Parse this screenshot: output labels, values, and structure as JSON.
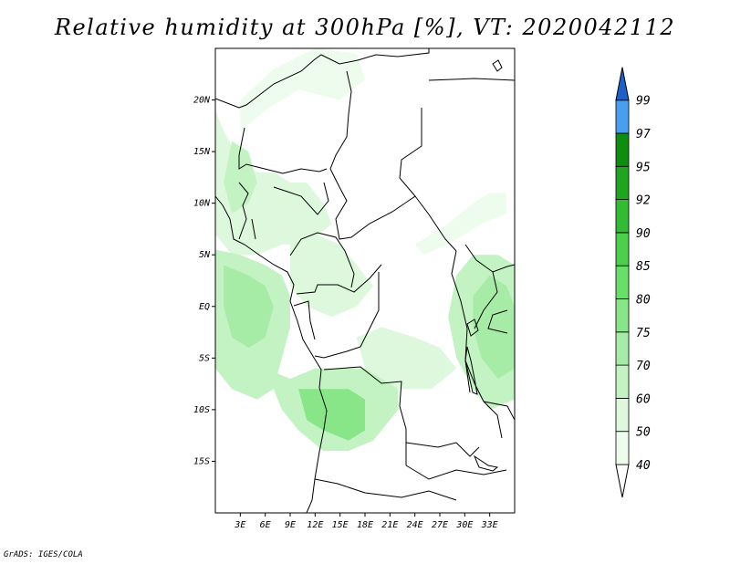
{
  "title": "Relative humidity at 300hPa [%], VT: 2020042112",
  "credit": "GrADS: IGES/COLA",
  "map": {
    "lon_range": [
      0,
      36
    ],
    "lat_range": [
      -20,
      25
    ],
    "lat_ticks": [
      {
        "value": 20,
        "label": "20N"
      },
      {
        "value": 15,
        "label": "15N"
      },
      {
        "value": 10,
        "label": "10N"
      },
      {
        "value": 5,
        "label": "5N"
      },
      {
        "value": 0,
        "label": "EQ"
      },
      {
        "value": -5,
        "label": "5S"
      },
      {
        "value": -10,
        "label": "10S"
      },
      {
        "value": -15,
        "label": "15S"
      }
    ],
    "lon_ticks": [
      {
        "value": 3,
        "label": "3E"
      },
      {
        "value": 6,
        "label": "6E"
      },
      {
        "value": 9,
        "label": "9E"
      },
      {
        "value": 12,
        "label": "12E"
      },
      {
        "value": 15,
        "label": "15E"
      },
      {
        "value": 18,
        "label": "18E"
      },
      {
        "value": 21,
        "label": "21E"
      },
      {
        "value": 24,
        "label": "24E"
      },
      {
        "value": 27,
        "label": "27E"
      },
      {
        "value": 30,
        "label": "30E"
      },
      {
        "value": 33,
        "label": "33E"
      }
    ]
  },
  "colorbar": {
    "levels": [
      {
        "value": "40",
        "color": "#eefcee"
      },
      {
        "value": "50",
        "color": "#ddf8dd"
      },
      {
        "value": "60",
        "color": "#c3f2c3"
      },
      {
        "value": "70",
        "color": "#a6eca6"
      },
      {
        "value": "75",
        "color": "#88e688"
      },
      {
        "value": "80",
        "color": "#6ade6a"
      },
      {
        "value": "85",
        "color": "#4cd04c"
      },
      {
        "value": "90",
        "color": "#33bb33"
      },
      {
        "value": "92",
        "color": "#1fa51f"
      },
      {
        "value": "95",
        "color": "#0e8e0e"
      },
      {
        "value": "97",
        "color": "#4a9ef0"
      },
      {
        "value": "99",
        "color": "#2a78dc"
      }
    ],
    "top_color": "#1e5fc8"
  },
  "humidity_regions": [
    {
      "name": "sahel-west",
      "level": "50",
      "pts": [
        [
          0,
          19
        ],
        [
          1,
          17
        ],
        [
          3,
          14
        ],
        [
          5,
          13
        ],
        [
          7,
          13
        ],
        [
          9,
          12
        ],
        [
          11,
          12
        ],
        [
          13,
          10
        ],
        [
          14,
          8
        ],
        [
          11,
          6
        ],
        [
          8,
          6
        ],
        [
          5,
          5
        ],
        [
          2,
          5
        ],
        [
          0,
          7
        ]
      ]
    },
    {
      "name": "sahel-north-arc",
      "level": "40",
      "pts": [
        [
          3,
          20
        ],
        [
          7,
          23
        ],
        [
          12,
          25
        ],
        [
          17,
          24.5
        ],
        [
          18,
          22
        ],
        [
          15,
          20
        ],
        [
          10,
          21
        ],
        [
          6,
          19
        ],
        [
          3,
          17
        ]
      ]
    },
    {
      "name": "west-highlands",
      "level": "60",
      "pts": [
        [
          2,
          16
        ],
        [
          4,
          15
        ],
        [
          5,
          12
        ],
        [
          4,
          10
        ],
        [
          2,
          9
        ],
        [
          1,
          12
        ]
      ]
    },
    {
      "name": "gulf-guinea",
      "level": "60",
      "pts": [
        [
          0,
          5.5
        ],
        [
          3,
          5
        ],
        [
          6,
          4
        ],
        [
          8,
          3
        ],
        [
          9,
          1
        ],
        [
          9,
          -2
        ],
        [
          8,
          -5
        ],
        [
          7,
          -8
        ],
        [
          5,
          -9
        ],
        [
          2,
          -8
        ],
        [
          0,
          -6
        ]
      ]
    },
    {
      "name": "gulf-guinea-core",
      "level": "70",
      "pts": [
        [
          1,
          4
        ],
        [
          4,
          3
        ],
        [
          6,
          2
        ],
        [
          7,
          0
        ],
        [
          6,
          -3
        ],
        [
          4,
          -4
        ],
        [
          2,
          -3
        ],
        [
          1,
          0
        ]
      ]
    },
    {
      "name": "angola-band",
      "level": "60",
      "pts": [
        [
          6,
          -6
        ],
        [
          9,
          -7
        ],
        [
          12,
          -6
        ],
        [
          16,
          -6
        ],
        [
          20,
          -6
        ],
        [
          22,
          -7
        ],
        [
          22,
          -10
        ],
        [
          19,
          -13
        ],
        [
          16,
          -14
        ],
        [
          13,
          -14
        ],
        [
          10,
          -12
        ],
        [
          8,
          -10
        ]
      ]
    },
    {
      "name": "angola-core",
      "level": "75",
      "pts": [
        [
          10,
          -8
        ],
        [
          13,
          -8
        ],
        [
          16,
          -8
        ],
        [
          18,
          -9
        ],
        [
          18,
          -12
        ],
        [
          16,
          -13
        ],
        [
          13,
          -12
        ],
        [
          11,
          -11
        ]
      ]
    },
    {
      "name": "cameroon-belt",
      "level": "50",
      "pts": [
        [
          9,
          6
        ],
        [
          12,
          7
        ],
        [
          15,
          6
        ],
        [
          17,
          4
        ],
        [
          19,
          2
        ],
        [
          17,
          0
        ],
        [
          14,
          -1
        ],
        [
          11,
          0
        ],
        [
          9,
          2
        ]
      ]
    },
    {
      "name": "congo-east",
      "level": "60",
      "pts": [
        [
          29,
          3
        ],
        [
          31,
          5
        ],
        [
          34,
          5
        ],
        [
          36,
          4
        ],
        [
          36,
          -9
        ],
        [
          33,
          -10
        ],
        [
          31,
          -8
        ],
        [
          29,
          -5
        ],
        [
          28,
          -1
        ]
      ]
    },
    {
      "name": "congo-east-core",
      "level": "70",
      "pts": [
        [
          31,
          1
        ],
        [
          33,
          3
        ],
        [
          35,
          2
        ],
        [
          36,
          0
        ],
        [
          36,
          -6
        ],
        [
          34,
          -7
        ],
        [
          32,
          -5
        ],
        [
          31,
          -2
        ]
      ]
    },
    {
      "name": "sudan-stripe",
      "level": "40",
      "pts": [
        [
          24,
          6
        ],
        [
          28,
          8
        ],
        [
          31,
          10
        ],
        [
          33,
          11
        ],
        [
          35,
          11
        ],
        [
          35,
          9
        ],
        [
          32,
          8
        ],
        [
          28,
          6
        ],
        [
          25,
          5
        ]
      ]
    },
    {
      "name": "central-patch",
      "level": "50",
      "pts": [
        [
          17,
          -3
        ],
        [
          20,
          -2
        ],
        [
          24,
          -3
        ],
        [
          27,
          -4
        ],
        [
          29,
          -6
        ],
        [
          26,
          -8
        ],
        [
          22,
          -8
        ],
        [
          18,
          -6
        ]
      ]
    }
  ]
}
